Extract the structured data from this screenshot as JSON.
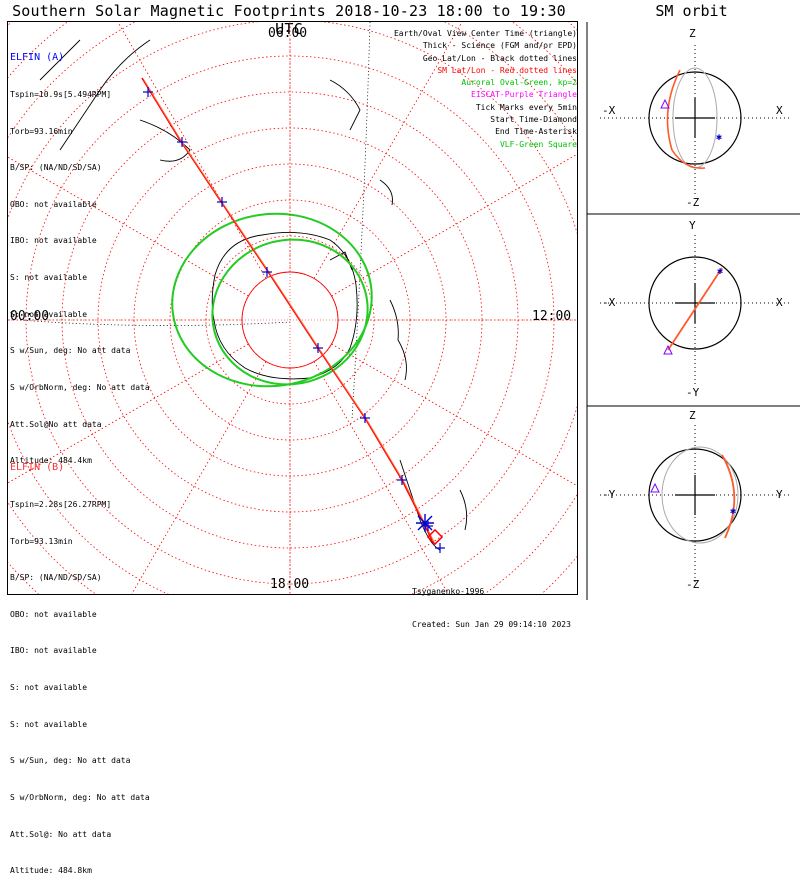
{
  "header": {
    "title": "Southern Solar Magnetic Footprints 2018-10-23 18:00 to 19:30 UTC",
    "orbit_title": "SM orbit"
  },
  "map_labels": {
    "top": "06:00",
    "left": "00:00",
    "right": "12:00",
    "bottom": "18:00"
  },
  "elfin_a": {
    "name": "ELFIN (A)",
    "lines": [
      "Tspin=10.9s[5.494RPM]",
      "Torb=93.16min",
      "B/SP: (NA/ND/SD/SA)",
      "OBO: not available",
      "IBO: not available",
      "S: not available",
      "S: not available",
      "S w/Sun, deg: No att data",
      "S w/OrbNorm, deg: No att data",
      "Att.Sol@No att data",
      "Altitude: 484.4km"
    ]
  },
  "elfin_b": {
    "name": "ELFIN (B)",
    "lines": [
      "Tspin=2.28s[26.27RPM]",
      "Torb=93.13min",
      "B/SP: (NA/ND/SD/SA)",
      "OBO: not available",
      "IBO: not available",
      "S: not available",
      "S: not available",
      "S w/Sun, deg: No att data",
      "S w/OrbNorm, deg: No att data",
      "Att.Sol@: No att data",
      "Altitude: 484.8km"
    ]
  },
  "legend": [
    {
      "text": "Earth/Oval View Center Time (triangle)",
      "color": "#000000"
    },
    {
      "text": "Thick - Science (FGM and/or EPD)",
      "color": "#000000"
    },
    {
      "text": "Geo Lat/Lon - Black dotted lines",
      "color": "#000000"
    },
    {
      "text": "SM Lat/Lon - Red dotted lines",
      "color": "#ff0000"
    },
    {
      "text": "Auroral Oval-Green, kp=2",
      "color": "#00c000"
    },
    {
      "text": "EISCAT-Purple Triangle",
      "color": "#ff00ff"
    },
    {
      "text": "Tick Marks every 5min",
      "color": "#000000"
    },
    {
      "text": "Start Time-Diamond",
      "color": "#000000"
    },
    {
      "text": "End Time-Asterisk",
      "color": "#000000"
    },
    {
      "text": "VLF-Green Square",
      "color": "#00c000"
    }
  ],
  "credits": {
    "model": "Tsyganenko-1996",
    "created": "Created: Sun Jan 29 09:14:10 2023"
  },
  "orbit_panels": [
    {
      "top": "Z",
      "bottom": "-Z",
      "left": "-X",
      "right": "X"
    },
    {
      "top": "Y",
      "bottom": "-Y",
      "left": "-X",
      "right": "X"
    },
    {
      "top": "Z",
      "bottom": "-Z",
      "left": "-Y",
      "right": "Y"
    }
  ],
  "colors": {
    "track_a": "#ff0000",
    "track_b": "#ff6a3a",
    "grid": "#ff0000",
    "oval": "#22cc22",
    "tick": "#0000cc"
  }
}
